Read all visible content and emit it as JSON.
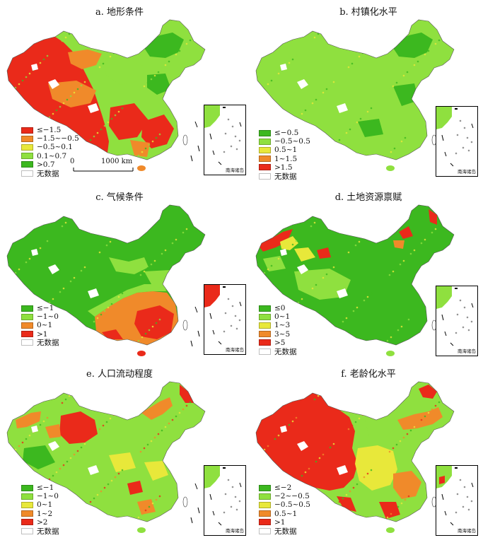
{
  "colors": {
    "dark_green": "#3cb81f",
    "light_green": "#8fe03f",
    "yellow": "#e8e83a",
    "orange": "#f08a2a",
    "red": "#ea2a1a",
    "no_data": "#ffffff"
  },
  "no_data_label": "无数据",
  "inset_label": "南海诸岛",
  "scalebar": {
    "zero": "0",
    "distance": "1000 km"
  },
  "panels": [
    {
      "id": "a",
      "title": "a. 地形条件",
      "legend": [
        {
          "label": "≤−1.5",
          "color": "#ea2a1a"
        },
        {
          "label": "−1.5~−0.5",
          "color": "#f08a2a"
        },
        {
          "label": "−0.5~0.1",
          "color": "#e8e83a"
        },
        {
          "label": "0.1~0.7",
          "color": "#8fe03f"
        },
        {
          "label": ">0.7",
          "color": "#3cb81f"
        }
      ]
    },
    {
      "id": "b",
      "title": "b. 村镇化水平",
      "legend": [
        {
          "label": "≤−0.5",
          "color": "#3cb81f"
        },
        {
          "label": "−0.5~0.5",
          "color": "#8fe03f"
        },
        {
          "label": "0.5~1",
          "color": "#e8e83a"
        },
        {
          "label": "1~1.5",
          "color": "#f08a2a"
        },
        {
          "label": ">1.5",
          "color": "#ea2a1a"
        }
      ]
    },
    {
      "id": "c",
      "title": "c. 气候条件",
      "legend": [
        {
          "label": "≤−1",
          "color": "#3cb81f"
        },
        {
          "label": "−1~0",
          "color": "#8fe03f"
        },
        {
          "label": "0~1",
          "color": "#f08a2a"
        },
        {
          "label": ">1",
          "color": "#ea2a1a"
        }
      ]
    },
    {
      "id": "d",
      "title": "d. 土地资源禀赋",
      "legend": [
        {
          "label": "≤0",
          "color": "#3cb81f"
        },
        {
          "label": "0~1",
          "color": "#8fe03f"
        },
        {
          "label": "1~3",
          "color": "#e8e83a"
        },
        {
          "label": "3~5",
          "color": "#f08a2a"
        },
        {
          "label": ">5",
          "color": "#ea2a1a"
        }
      ]
    },
    {
      "id": "e",
      "title": "e. 人口流动程度",
      "legend": [
        {
          "label": "≤−1",
          "color": "#3cb81f"
        },
        {
          "label": "−1~0",
          "color": "#8fe03f"
        },
        {
          "label": "0~1",
          "color": "#e8e83a"
        },
        {
          "label": "1~2",
          "color": "#f08a2a"
        },
        {
          "label": ">2",
          "color": "#ea2a1a"
        }
      ]
    },
    {
      "id": "f",
      "title": "f. 老龄化水平",
      "legend": [
        {
          "label": "≤−2",
          "color": "#3cb81f"
        },
        {
          "label": "−2~−0.5",
          "color": "#8fe03f"
        },
        {
          "label": "−0.5~0.5",
          "color": "#e8e83a"
        },
        {
          "label": "0.5~1",
          "color": "#f08a2a"
        },
        {
          "label": ">1",
          "color": "#ea2a1a"
        }
      ]
    }
  ]
}
